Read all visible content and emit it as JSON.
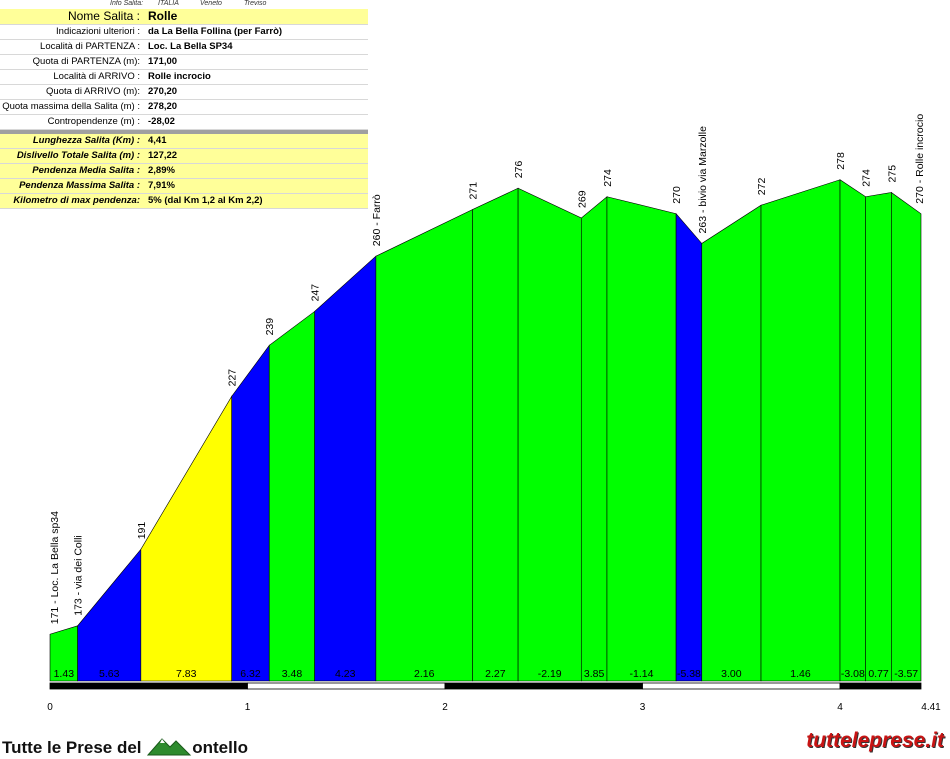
{
  "info": {
    "header": [
      "Info Salita:",
      "ITALIA",
      "Veneto",
      "Treviso"
    ],
    "rows": [
      {
        "label": "Nome Salita :",
        "value": "Rolle",
        "style": "big"
      },
      {
        "label": "Indicazioni ulteriori :",
        "value": "da La Bella Follina (per Farrò)",
        "style": "plain"
      },
      {
        "label": "Località di PARTENZA :",
        "value": "Loc. La Bella SP34",
        "style": "plain"
      },
      {
        "label": "Quota di PARTENZA (m):",
        "value": "171,00",
        "style": "plain"
      },
      {
        "label": "Località di ARRIVO :",
        "value": "Rolle incrocio",
        "style": "plain"
      },
      {
        "label": "Quota di ARRIVO (m):",
        "value": "270,20",
        "style": "plain"
      },
      {
        "label": "Quota massima della Salita (m) :",
        "value": "278,20",
        "style": "plain"
      },
      {
        "label": "Contropendenze (m) :",
        "value": "-28,02",
        "style": "plain"
      }
    ],
    "stats": [
      {
        "label": "Lunghezza Salita (Km) :",
        "value": "4,41"
      },
      {
        "label": "Dislivello Totale Salita (m) :",
        "value": "127,22"
      },
      {
        "label": "Pendenza Media Salita :",
        "value": "2,89%"
      },
      {
        "label": "Pendenza Massima Salita :",
        "value": "7,91%"
      },
      {
        "label": "Kilometro di max pendenza:",
        "value": "5%        (dal Km 1,2 al Km 2,2)"
      }
    ]
  },
  "chart_data": {
    "type": "area",
    "xlabel": "",
    "ylabel": "",
    "xlim": [
      0,
      4.41
    ],
    "ylim": [
      160,
      285
    ],
    "x_ticks": [
      "0",
      "1",
      "2",
      "3",
      "4",
      "4.41"
    ],
    "x_tick_values": [
      0,
      1,
      2,
      3,
      4,
      4.41
    ],
    "points": [
      {
        "x": 0.0,
        "y": 171,
        "label": "171 - Loc. La Bella sp34"
      },
      {
        "x": 0.14,
        "y": 173,
        "label": "173 - via dei Colli"
      },
      {
        "x": 0.46,
        "y": 191,
        "label": "191"
      },
      {
        "x": 0.92,
        "y": 227,
        "label": "227"
      },
      {
        "x": 1.11,
        "y": 239,
        "label": "239"
      },
      {
        "x": 1.34,
        "y": 247,
        "label": "247"
      },
      {
        "x": 1.65,
        "y": 260,
        "label": "260 - Farrò"
      },
      {
        "x": 2.14,
        "y": 271,
        "label": "271"
      },
      {
        "x": 2.37,
        "y": 276,
        "label": "276"
      },
      {
        "x": 2.69,
        "y": 269,
        "label": "269"
      },
      {
        "x": 2.82,
        "y": 274,
        "label": "274"
      },
      {
        "x": 3.17,
        "y": 270,
        "label": "270"
      },
      {
        "x": 3.3,
        "y": 263,
        "label": "263 - bivio via Marzolle"
      },
      {
        "x": 3.6,
        "y": 272,
        "label": "272"
      },
      {
        "x": 4.0,
        "y": 278,
        "label": "278"
      },
      {
        "x": 4.13,
        "y": 274,
        "label": "274"
      },
      {
        "x": 4.26,
        "y": 275,
        "label": "275"
      },
      {
        "x": 4.41,
        "y": 270,
        "label": "270 - Rolle incrocio"
      }
    ],
    "segments": [
      {
        "gradient": "1.43",
        "color": "#00ff00"
      },
      {
        "gradient": "5.63",
        "color": "#0000ff"
      },
      {
        "gradient": "7.83",
        "color": "#ffff00"
      },
      {
        "gradient": "6.32",
        "color": "#0000ff"
      },
      {
        "gradient": "3.48",
        "color": "#00ff00"
      },
      {
        "gradient": "4.23",
        "color": "#0000ff"
      },
      {
        "gradient": "2.16",
        "color": "#00ff00"
      },
      {
        "gradient": "2.27",
        "color": "#00ff00"
      },
      {
        "gradient": "-2.19",
        "color": "#00ff00"
      },
      {
        "gradient": "3.85",
        "color": "#00ff00"
      },
      {
        "gradient": "-1.14",
        "color": "#00ff00"
      },
      {
        "gradient": "-5.38",
        "color": "#0000ff"
      },
      {
        "gradient": "3.00",
        "color": "#00ff00"
      },
      {
        "gradient": "1.46",
        "color": "#00ff00"
      },
      {
        "gradient": "-3.08",
        "color": "#00ff00"
      },
      {
        "gradient": "0.77",
        "color": "#00ff00"
      },
      {
        "gradient": "-3.57",
        "color": "#00ff00"
      }
    ]
  },
  "footer": {
    "left_logo": "Tutte le Prese del",
    "left_logo_suffix": "ontello",
    "right_logo": "tutteleprese.it"
  }
}
